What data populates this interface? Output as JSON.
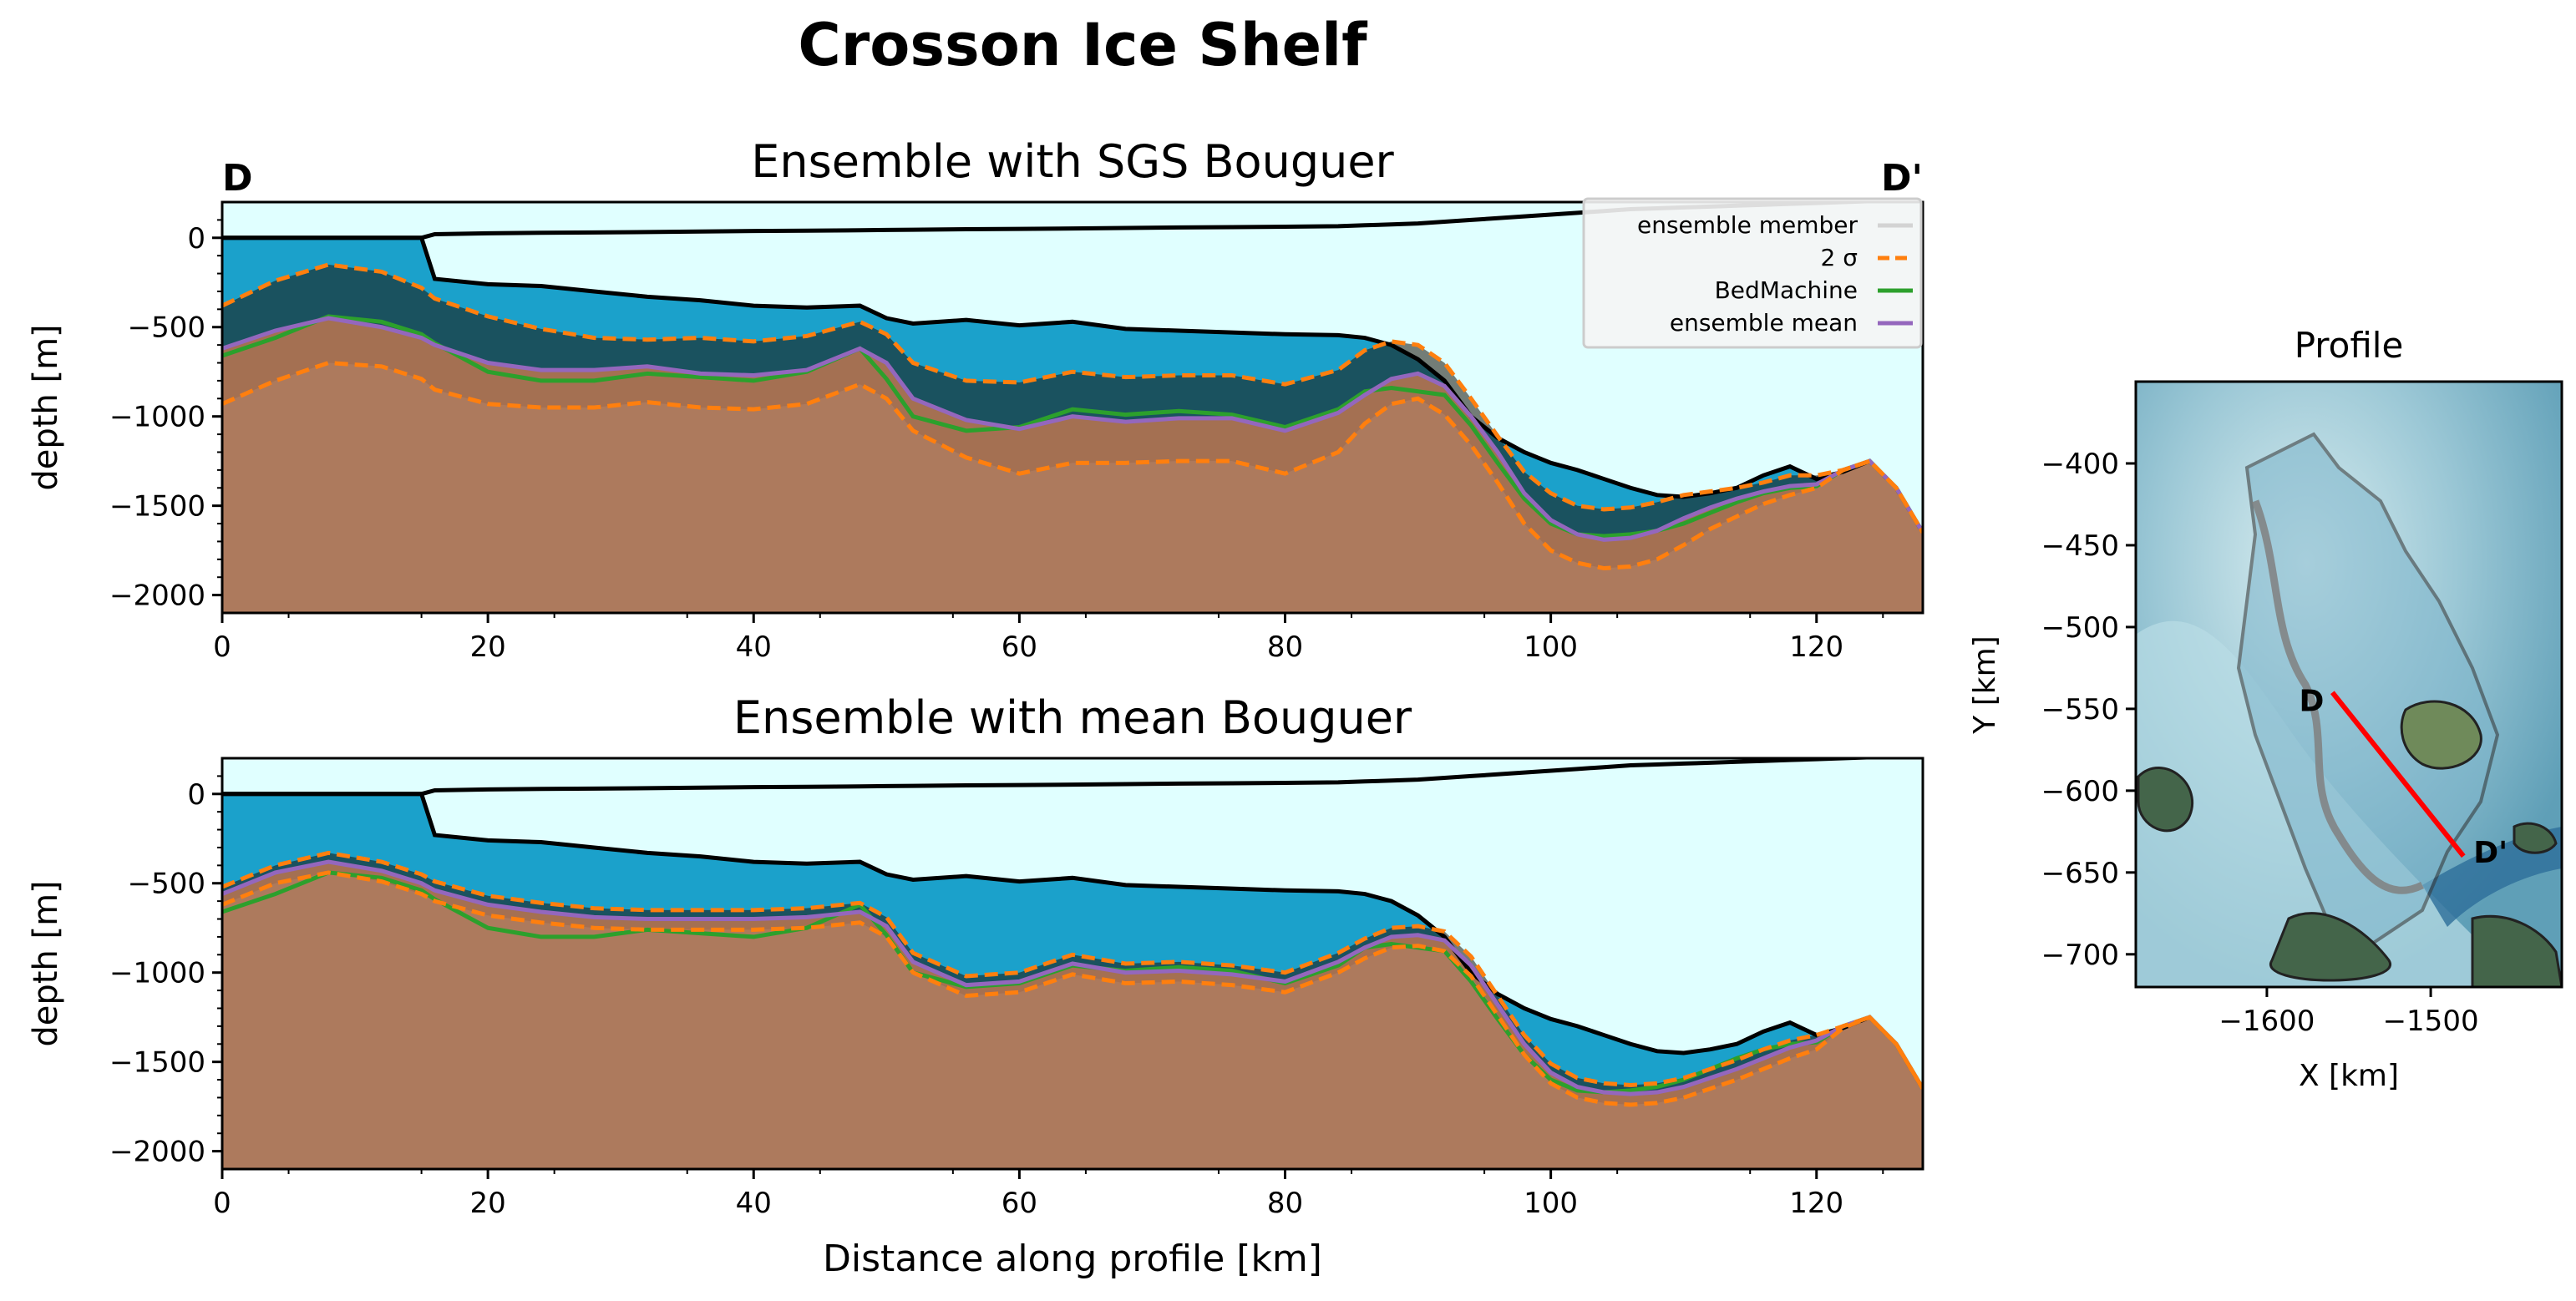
{
  "figure": {
    "title": "Crosson Ice Shelf"
  },
  "chart_data": [
    {
      "type": "area",
      "title": "Ensemble with SGS Bouguer",
      "xlabel": "",
      "ylabel": "depth [m]",
      "xlim": [
        0,
        128
      ],
      "ylim": [
        -2100,
        200
      ],
      "xticks": [
        0,
        20,
        40,
        60,
        80,
        100,
        120
      ],
      "yticks": [
        0,
        -500,
        -1000,
        -1500,
        -2000
      ],
      "corner_labels": {
        "left": "D",
        "right": "D'"
      },
      "legend": {
        "placement": "top-right",
        "entries": [
          {
            "label": "ensemble member",
            "color": "#d3d3d3",
            "style": "solid"
          },
          {
            "label": "2 σ",
            "color": "#ff7f0e",
            "style": "dashed"
          },
          {
            "label": "BedMachine",
            "color": "#2ca02c",
            "style": "solid"
          },
          {
            "label": "ensemble mean",
            "color": "#9467bd",
            "style": "solid"
          }
        ]
      },
      "fill_colors": {
        "air": "#e0ffff",
        "ice": "#e0ffff",
        "water": "#1ba1cb",
        "bed": "#a86f4f"
      },
      "x": [
        0,
        4,
        8,
        12,
        15,
        16,
        20,
        24,
        28,
        32,
        36,
        40,
        44,
        48,
        50,
        52,
        56,
        60,
        64,
        68,
        72,
        76,
        80,
        84,
        86,
        88,
        90,
        92,
        94,
        96,
        98,
        100,
        102,
        104,
        106,
        108,
        110,
        112,
        114,
        116,
        118,
        120,
        122,
        124,
        126,
        128
      ],
      "series": [
        {
          "name": "surface",
          "values": [
            0,
            0,
            0,
            0,
            0,
            20,
            25,
            28,
            30,
            32,
            35,
            38,
            40,
            42,
            44,
            45,
            48,
            50,
            52,
            55,
            58,
            60,
            62,
            65,
            70,
            75,
            80,
            90,
            100,
            110,
            120,
            130,
            140,
            150,
            160,
            165,
            170,
            175,
            180,
            185,
            190,
            195,
            200,
            205,
            210,
            215
          ]
        },
        {
          "name": "ice base",
          "values": [
            0,
            0,
            0,
            0,
            0,
            -230,
            -260,
            -270,
            -300,
            -330,
            -350,
            -380,
            -390,
            -380,
            -450,
            -480,
            -460,
            -490,
            -470,
            -510,
            -520,
            -530,
            -540,
            -545,
            -560,
            -600,
            -680,
            -800,
            -1000,
            -1120,
            -1200,
            -1260,
            -1300,
            -1350,
            -1400,
            -1440,
            -1450,
            -1430,
            -1400,
            -1330,
            -1280,
            -1350,
            -1310,
            -1250,
            -1400,
            -1650
          ]
        },
        {
          "name": "ensemble mean",
          "values": [
            -620,
            -520,
            -450,
            -500,
            -560,
            -600,
            -700,
            -740,
            -740,
            -720,
            -760,
            -770,
            -740,
            -620,
            -700,
            -900,
            -1020,
            -1070,
            -1000,
            -1030,
            -1010,
            -1010,
            -1080,
            -980,
            -880,
            -790,
            -760,
            -830,
            -1000,
            -1200,
            -1430,
            -1580,
            -1660,
            -1690,
            -1680,
            -1640,
            -1570,
            -1510,
            -1460,
            -1420,
            -1390,
            -1380,
            -1300,
            -1250,
            -1400,
            -1650
          ]
        },
        {
          "name": "BedMachine",
          "values": [
            -660,
            -560,
            -440,
            -470,
            -540,
            -590,
            -750,
            -800,
            -800,
            -760,
            -780,
            -800,
            -750,
            -620,
            -790,
            -1000,
            -1080,
            -1060,
            -960,
            -990,
            -970,
            -990,
            -1060,
            -960,
            -860,
            -840,
            -860,
            -880,
            -1050,
            -1260,
            -1460,
            -1600,
            -1660,
            -1670,
            -1660,
            -1640,
            -1600,
            -1540,
            -1480,
            -1430,
            -1400,
            -1390,
            -1300,
            -1250,
            -1400,
            -1650
          ]
        },
        {
          "name": "+2 σ",
          "values": [
            -380,
            -240,
            -150,
            -190,
            -280,
            -340,
            -440,
            -510,
            -560,
            -570,
            -560,
            -580,
            -550,
            -470,
            -540,
            -700,
            -800,
            -810,
            -750,
            -780,
            -770,
            -770,
            -820,
            -740,
            -630,
            -580,
            -600,
            -700,
            -900,
            -1110,
            -1310,
            -1430,
            -1500,
            -1520,
            -1510,
            -1480,
            -1440,
            -1420,
            -1400,
            -1370,
            -1330,
            -1330,
            -1300,
            -1250,
            -1400,
            -1650
          ]
        },
        {
          "name": "-2 σ",
          "values": [
            -930,
            -800,
            -700,
            -720,
            -790,
            -850,
            -930,
            -950,
            -950,
            -920,
            -950,
            -960,
            -930,
            -820,
            -900,
            -1080,
            -1230,
            -1320,
            -1260,
            -1260,
            -1250,
            -1250,
            -1320,
            -1200,
            -1040,
            -930,
            -900,
            -990,
            -1160,
            -1370,
            -1600,
            -1750,
            -1820,
            -1850,
            -1840,
            -1800,
            -1720,
            -1630,
            -1560,
            -1490,
            -1440,
            -1400,
            -1300,
            -1250,
            -1400,
            -1650
          ]
        }
      ]
    },
    {
      "type": "area",
      "title": "Ensemble with mean Bouguer",
      "xlabel": "Distance along profile [km]",
      "ylabel": "depth [m]",
      "xlim": [
        0,
        128
      ],
      "ylim": [
        -2100,
        200
      ],
      "xticks": [
        0,
        20,
        40,
        60,
        80,
        100,
        120
      ],
      "yticks": [
        0,
        -500,
        -1000,
        -1500,
        -2000
      ],
      "fill_colors": {
        "air": "#e0ffff",
        "ice": "#e0ffff",
        "water": "#1ba1cb",
        "bed": "#a86f4f"
      },
      "x": [
        0,
        4,
        8,
        12,
        15,
        16,
        20,
        24,
        28,
        32,
        36,
        40,
        44,
        48,
        50,
        52,
        56,
        60,
        64,
        68,
        72,
        76,
        80,
        84,
        86,
        88,
        90,
        92,
        94,
        96,
        98,
        100,
        102,
        104,
        106,
        108,
        110,
        112,
        114,
        116,
        118,
        120,
        122,
        124,
        126,
        128
      ],
      "series": [
        {
          "name": "surface",
          "values": [
            0,
            0,
            0,
            0,
            0,
            20,
            25,
            28,
            30,
            32,
            35,
            38,
            40,
            42,
            44,
            45,
            48,
            50,
            52,
            55,
            58,
            60,
            62,
            65,
            70,
            75,
            80,
            90,
            100,
            110,
            120,
            130,
            140,
            150,
            160,
            165,
            170,
            175,
            180,
            185,
            190,
            195,
            200,
            205,
            210,
            215
          ]
        },
        {
          "name": "ice base",
          "values": [
            0,
            0,
            0,
            0,
            0,
            -230,
            -260,
            -270,
            -300,
            -330,
            -350,
            -380,
            -390,
            -380,
            -450,
            -480,
            -460,
            -490,
            -470,
            -510,
            -520,
            -530,
            -540,
            -545,
            -560,
            -600,
            -680,
            -800,
            -1000,
            -1120,
            -1200,
            -1260,
            -1300,
            -1350,
            -1400,
            -1440,
            -1450,
            -1430,
            -1400,
            -1330,
            -1280,
            -1350,
            -1310,
            -1250,
            -1400,
            -1650
          ]
        },
        {
          "name": "ensemble mean",
          "values": [
            -560,
            -440,
            -380,
            -430,
            -500,
            -540,
            -620,
            -660,
            -690,
            -700,
            -700,
            -700,
            -690,
            -660,
            -740,
            -940,
            -1070,
            -1050,
            -950,
            -1000,
            -990,
            -1010,
            -1050,
            -940,
            -860,
            -800,
            -790,
            -820,
            -960,
            -1180,
            -1400,
            -1560,
            -1640,
            -1670,
            -1680,
            -1670,
            -1640,
            -1590,
            -1540,
            -1480,
            -1420,
            -1380,
            -1300,
            -1250,
            -1400,
            -1650
          ]
        },
        {
          "name": "BedMachine",
          "values": [
            -660,
            -560,
            -440,
            -470,
            -540,
            -590,
            -750,
            -800,
            -800,
            -760,
            -780,
            -800,
            -750,
            -620,
            -790,
            -1000,
            -1080,
            -1060,
            -960,
            -990,
            -970,
            -990,
            -1060,
            -960,
            -860,
            -840,
            -860,
            -880,
            -1050,
            -1260,
            -1460,
            -1600,
            -1660,
            -1670,
            -1660,
            -1640,
            -1600,
            -1540,
            -1480,
            -1430,
            -1400,
            -1390,
            -1300,
            -1250,
            -1400,
            -1650
          ]
        },
        {
          "name": "+2 σ",
          "values": [
            -520,
            -400,
            -330,
            -380,
            -450,
            -490,
            -570,
            -610,
            -640,
            -650,
            -650,
            -650,
            -640,
            -610,
            -690,
            -890,
            -1020,
            -1000,
            -900,
            -950,
            -940,
            -960,
            -1000,
            -890,
            -810,
            -750,
            -740,
            -770,
            -910,
            -1130,
            -1350,
            -1510,
            -1590,
            -1620,
            -1630,
            -1620,
            -1590,
            -1540,
            -1490,
            -1430,
            -1380,
            -1350,
            -1300,
            -1250,
            -1400,
            -1650
          ]
        },
        {
          "name": "-2 σ",
          "values": [
            -620,
            -500,
            -440,
            -490,
            -560,
            -600,
            -680,
            -720,
            -750,
            -760,
            -760,
            -760,
            -750,
            -720,
            -800,
            -1000,
            -1130,
            -1110,
            -1010,
            -1060,
            -1050,
            -1070,
            -1110,
            -1000,
            -920,
            -860,
            -850,
            -880,
            -1020,
            -1240,
            -1460,
            -1620,
            -1700,
            -1730,
            -1740,
            -1730,
            -1700,
            -1650,
            -1600,
            -1540,
            -1480,
            -1430,
            -1310,
            -1250,
            -1400,
            -1650
          ]
        }
      ]
    },
    {
      "type": "map",
      "title": "Profile",
      "xlabel": "X [km]",
      "ylabel": "Y [km]",
      "xlim": [
        -1680,
        -1420
      ],
      "ylim": [
        -720,
        -350
      ],
      "xticks": [
        -1600,
        -1500
      ],
      "yticks": [
        -400,
        -450,
        -500,
        -550,
        -600,
        -650,
        -700
      ],
      "profile_line": {
        "start": [
          -1560,
          -540
        ],
        "end": [
          -1480,
          -640
        ],
        "color": "#ff0000"
      },
      "profile_labels": {
        "start": "D",
        "end": "D'"
      }
    }
  ]
}
